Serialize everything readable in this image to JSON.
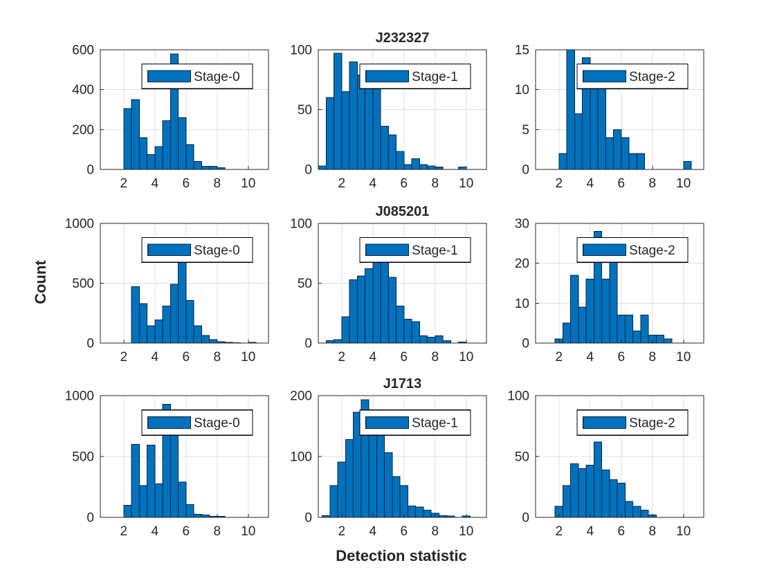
{
  "figure": {
    "ylabel": "Count",
    "xlabel": "Detection statistic",
    "colors": {
      "bar_fill": "#0072BD",
      "bar_edge": "#00243d",
      "grid": "#e0e0e0",
      "axis": "#262626",
      "text": "#262626",
      "legend_bg": "#ffffff",
      "legend_border": "#000000"
    }
  },
  "chart_data": [
    {
      "type": "bar",
      "row": 0,
      "col": 0,
      "title": "",
      "legend": "Stage-0",
      "ylim": [
        0,
        600
      ],
      "yticks": [
        0,
        200,
        400,
        600
      ],
      "xticks": [
        2,
        4,
        6,
        8,
        10
      ],
      "xlim": [
        0.5,
        11.3
      ],
      "bin_start": 2.0,
      "bin_width": 0.5,
      "values": [
        305,
        350,
        160,
        75,
        115,
        245,
        580,
        260,
        125,
        40,
        15,
        15,
        8
      ],
      "grid": true,
      "legend_position": "north"
    },
    {
      "type": "bar",
      "row": 0,
      "col": 1,
      "title": "J232327",
      "legend": "Stage-1",
      "ylim": [
        0,
        100
      ],
      "yticks": [
        0,
        50,
        100
      ],
      "xticks": [
        2,
        4,
        6,
        8,
        10
      ],
      "xlim": [
        0.5,
        11.3
      ],
      "bin_start": 0.5,
      "bin_width": 0.5,
      "values": [
        3,
        60,
        97,
        65,
        90,
        79,
        70,
        70,
        36,
        29,
        15,
        4,
        9,
        4,
        3,
        2,
        0,
        0,
        2
      ],
      "grid": true,
      "legend_position": "north"
    },
    {
      "type": "bar",
      "row": 0,
      "col": 2,
      "title": "",
      "legend": "Stage-2",
      "ylim": [
        0,
        15
      ],
      "yticks": [
        0,
        5,
        10,
        15
      ],
      "xticks": [
        2,
        4,
        6,
        8,
        10
      ],
      "xlim": [
        0.5,
        11.3
      ],
      "bin_start": 2.0,
      "bin_width": 0.5,
      "values": [
        2,
        15,
        7,
        14,
        12,
        11,
        4,
        5,
        4,
        2,
        2,
        0,
        0,
        0,
        0,
        0,
        1
      ],
      "grid": true,
      "legend_position": "north"
    },
    {
      "type": "bar",
      "row": 1,
      "col": 0,
      "title": "",
      "legend": "Stage-0",
      "ylim": [
        0,
        1000
      ],
      "yticks": [
        0,
        500,
        1000
      ],
      "xticks": [
        2,
        4,
        6,
        8,
        10
      ],
      "xlim": [
        0.5,
        11.3
      ],
      "bin_start": 2.5,
      "bin_width": 0.5,
      "values": [
        470,
        330,
        145,
        195,
        310,
        490,
        730,
        355,
        145,
        65,
        30,
        12,
        5,
        3,
        0,
        5
      ],
      "grid": true,
      "legend_position": "north"
    },
    {
      "type": "bar",
      "row": 1,
      "col": 1,
      "title": "J085201",
      "legend": "Stage-1",
      "ylim": [
        0,
        100
      ],
      "yticks": [
        0,
        50,
        100
      ],
      "xticks": [
        2,
        4,
        6,
        8,
        10
      ],
      "xlim": [
        0.5,
        11.3
      ],
      "bin_start": 1.0,
      "bin_width": 0.5,
      "values": [
        2,
        3,
        22,
        53,
        56,
        62,
        72,
        70,
        55,
        31,
        20,
        18,
        6,
        5,
        6,
        2,
        0,
        1
      ],
      "grid": true,
      "legend_position": "north"
    },
    {
      "type": "bar",
      "row": 1,
      "col": 2,
      "title": "",
      "legend": "Stage-2",
      "ylim": [
        0,
        30
      ],
      "yticks": [
        0,
        10,
        20,
        30
      ],
      "xticks": [
        2,
        4,
        6,
        8,
        10
      ],
      "xlim": [
        0.5,
        11.3
      ],
      "bin_start": 1.75,
      "bin_width": 0.5,
      "values": [
        1,
        5,
        17,
        9,
        16,
        28,
        16,
        23,
        7,
        7,
        3,
        7,
        2,
        2,
        1
      ],
      "grid": true,
      "legend_position": "north"
    },
    {
      "type": "bar",
      "row": 2,
      "col": 0,
      "title": "",
      "legend": "Stage-0",
      "ylim": [
        0,
        1000
      ],
      "yticks": [
        0,
        500,
        1000
      ],
      "xticks": [
        2,
        4,
        6,
        8,
        10
      ],
      "xlim": [
        0.5,
        11.3
      ],
      "bin_start": 2.0,
      "bin_width": 0.5,
      "values": [
        100,
        600,
        260,
        595,
        275,
        930,
        730,
        290,
        105,
        25,
        20,
        8,
        8
      ],
      "grid": true,
      "legend_position": "north"
    },
    {
      "type": "bar",
      "row": 2,
      "col": 1,
      "title": "J1713",
      "legend": "Stage-1",
      "ylim": [
        0,
        200
      ],
      "yticks": [
        0,
        100,
        200
      ],
      "xticks": [
        2,
        4,
        6,
        8,
        10
      ],
      "xlim": [
        0.5,
        11.3
      ],
      "bin_start": 0.75,
      "bin_width": 0.5,
      "values": [
        3,
        52,
        91,
        128,
        173,
        193,
        142,
        140,
        106,
        67,
        52,
        19,
        17,
        12,
        7,
        3,
        2,
        0,
        2
      ],
      "grid": true,
      "legend_position": "north"
    },
    {
      "type": "bar",
      "row": 2,
      "col": 2,
      "title": "",
      "legend": "Stage-2",
      "ylim": [
        0,
        100
      ],
      "yticks": [
        0,
        50,
        100
      ],
      "xticks": [
        2,
        4,
        6,
        8,
        10
      ],
      "xlim": [
        0.5,
        11.3
      ],
      "bin_start": 1.75,
      "bin_width": 0.5,
      "values": [
        9,
        26,
        44,
        40,
        43,
        62,
        39,
        31,
        28,
        13,
        9,
        6,
        2
      ],
      "grid": true,
      "legend_position": "north"
    }
  ]
}
